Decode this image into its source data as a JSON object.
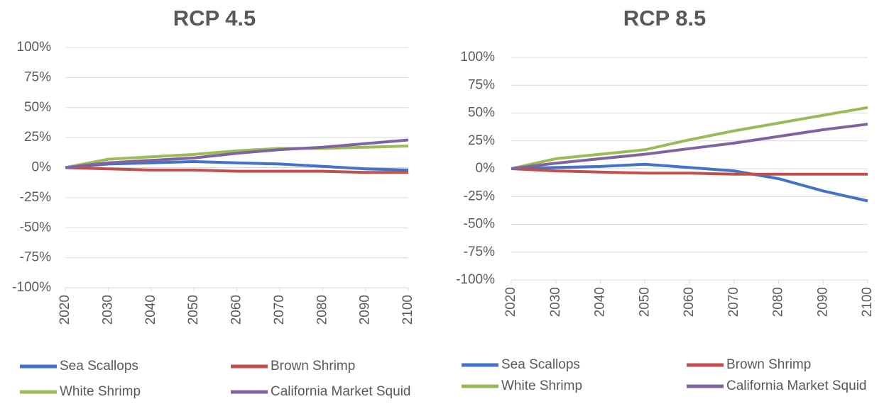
{
  "chart_data": [
    {
      "type": "line",
      "title": "RCP 4.5",
      "x": [
        2020,
        2030,
        2040,
        2050,
        2060,
        2070,
        2080,
        2090,
        2100
      ],
      "xlim": [
        2020,
        2100
      ],
      "xticks": [
        2020,
        2030,
        2040,
        2050,
        2060,
        2070,
        2080,
        2090,
        2100
      ],
      "ylim": [
        -100,
        100
      ],
      "yticks": [
        {
          "value": -100,
          "label": "-100%"
        },
        {
          "value": -75,
          "label": "-75%"
        },
        {
          "value": -50,
          "label": "-50%"
        },
        {
          "value": -25,
          "label": "-25%"
        },
        {
          "value": 0,
          "label": "0%"
        },
        {
          "value": 25,
          "label": "25%"
        },
        {
          "value": 50,
          "label": "50%"
        },
        {
          "value": 75,
          "label": "75%"
        },
        {
          "value": 100,
          "label": "100%"
        }
      ],
      "grid": true,
      "series": [
        {
          "name": "Sea Scallops",
          "color": "#4472c4",
          "values": [
            0,
            3,
            4,
            5,
            4,
            3,
            1,
            -1,
            -2
          ]
        },
        {
          "name": "Brown Shrimp",
          "color": "#c0504d",
          "values": [
            0,
            -1,
            -2,
            -2,
            -3,
            -3,
            -3,
            -4,
            -4
          ]
        },
        {
          "name": "White Shrimp",
          "color": "#9bbb59",
          "values": [
            0,
            7,
            9,
            11,
            14,
            16,
            16,
            17,
            18
          ]
        },
        {
          "name": "California Market Squid",
          "color": "#8064a2",
          "values": [
            0,
            4,
            6,
            8,
            12,
            15,
            17,
            20,
            23
          ]
        }
      ]
    },
    {
      "type": "line",
      "title": "RCP 8.5",
      "x": [
        2020,
        2030,
        2040,
        2050,
        2060,
        2070,
        2080,
        2090,
        2100
      ],
      "xlim": [
        2020,
        2100
      ],
      "xticks": [
        2020,
        2030,
        2040,
        2050,
        2060,
        2070,
        2080,
        2090,
        2100
      ],
      "ylim": [
        -100,
        100
      ],
      "yticks": [
        {
          "value": -100,
          "label": "-100%"
        },
        {
          "value": -75,
          "label": "-75%"
        },
        {
          "value": -50,
          "label": "-50%"
        },
        {
          "value": -25,
          "label": "-25%"
        },
        {
          "value": 0,
          "label": "0%"
        },
        {
          "value": 25,
          "label": "25%"
        },
        {
          "value": 50,
          "label": "50%"
        },
        {
          "value": 75,
          "label": "75%"
        },
        {
          "value": 100,
          "label": "100%"
        }
      ],
      "grid": true,
      "series": [
        {
          "name": "Sea Scallops",
          "color": "#4472c4",
          "values": [
            0,
            1,
            2,
            4,
            1,
            -2,
            -9,
            -20,
            -29
          ]
        },
        {
          "name": "Brown Shrimp",
          "color": "#c0504d",
          "values": [
            0,
            -2,
            -3,
            -4,
            -4,
            -5,
            -5,
            -5,
            -5
          ]
        },
        {
          "name": "White Shrimp",
          "color": "#9bbb59",
          "values": [
            0,
            9,
            13,
            17,
            26,
            34,
            41,
            48,
            55
          ]
        },
        {
          "name": "California Market Squid",
          "color": "#8064a2",
          "values": [
            0,
            5,
            9,
            13,
            18,
            23,
            29,
            35,
            40
          ]
        }
      ]
    }
  ]
}
